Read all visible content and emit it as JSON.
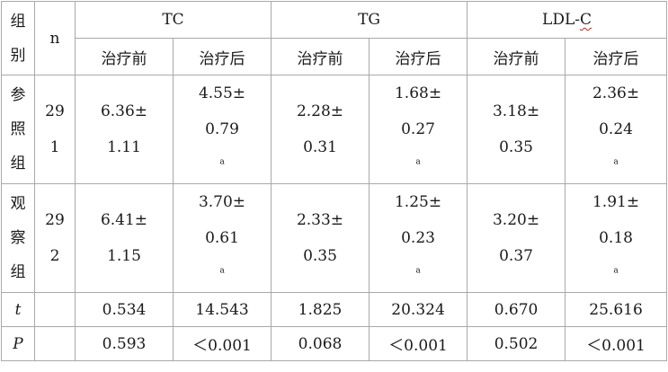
{
  "headers": {
    "group": [
      "组",
      "别"
    ],
    "n": "n",
    "tc": "TC",
    "tg": "TG",
    "ldl_prefix": "LDL-",
    "ldl_suffix": "C",
    "sub": [
      "治疗前",
      "治疗后",
      "治疗前",
      "治疗后",
      "治疗前",
      "治疗后"
    ]
  },
  "rows": [
    {
      "group": [
        "参",
        "照",
        "组"
      ],
      "n": [
        "29",
        "1"
      ],
      "values": [
        [
          "6.36±",
          "1.11",
          ""
        ],
        [
          "4.55±",
          "0.79",
          "a"
        ],
        [
          "2.28±",
          "0.31",
          ""
        ],
        [
          "1.68±",
          "0.27",
          "a"
        ],
        [
          "3.18±",
          "0.35",
          ""
        ],
        [
          "2.36±",
          "0.24",
          "a"
        ]
      ]
    },
    {
      "group": [
        "观",
        "察",
        "组"
      ],
      "n": [
        "29",
        "2"
      ],
      "values": [
        [
          "6.41±",
          "1.15",
          ""
        ],
        [
          "3.70±",
          "0.61",
          "a"
        ],
        [
          "2.33±",
          "0.35",
          ""
        ],
        [
          "1.25±",
          "0.23",
          "a"
        ],
        [
          "3.20±",
          "0.37",
          ""
        ],
        [
          "1.91±",
          "0.18",
          "a"
        ]
      ]
    }
  ],
  "t_row": {
    "label": "t",
    "values": [
      "0.534",
      "14.543",
      "1.825",
      "20.324",
      "0.670",
      "25.616"
    ]
  },
  "p_row": {
    "label": "P",
    "values": [
      "0.593",
      "＜0.001",
      "0.068",
      "＜0.001",
      "0.502",
      "＜0.001"
    ]
  }
}
